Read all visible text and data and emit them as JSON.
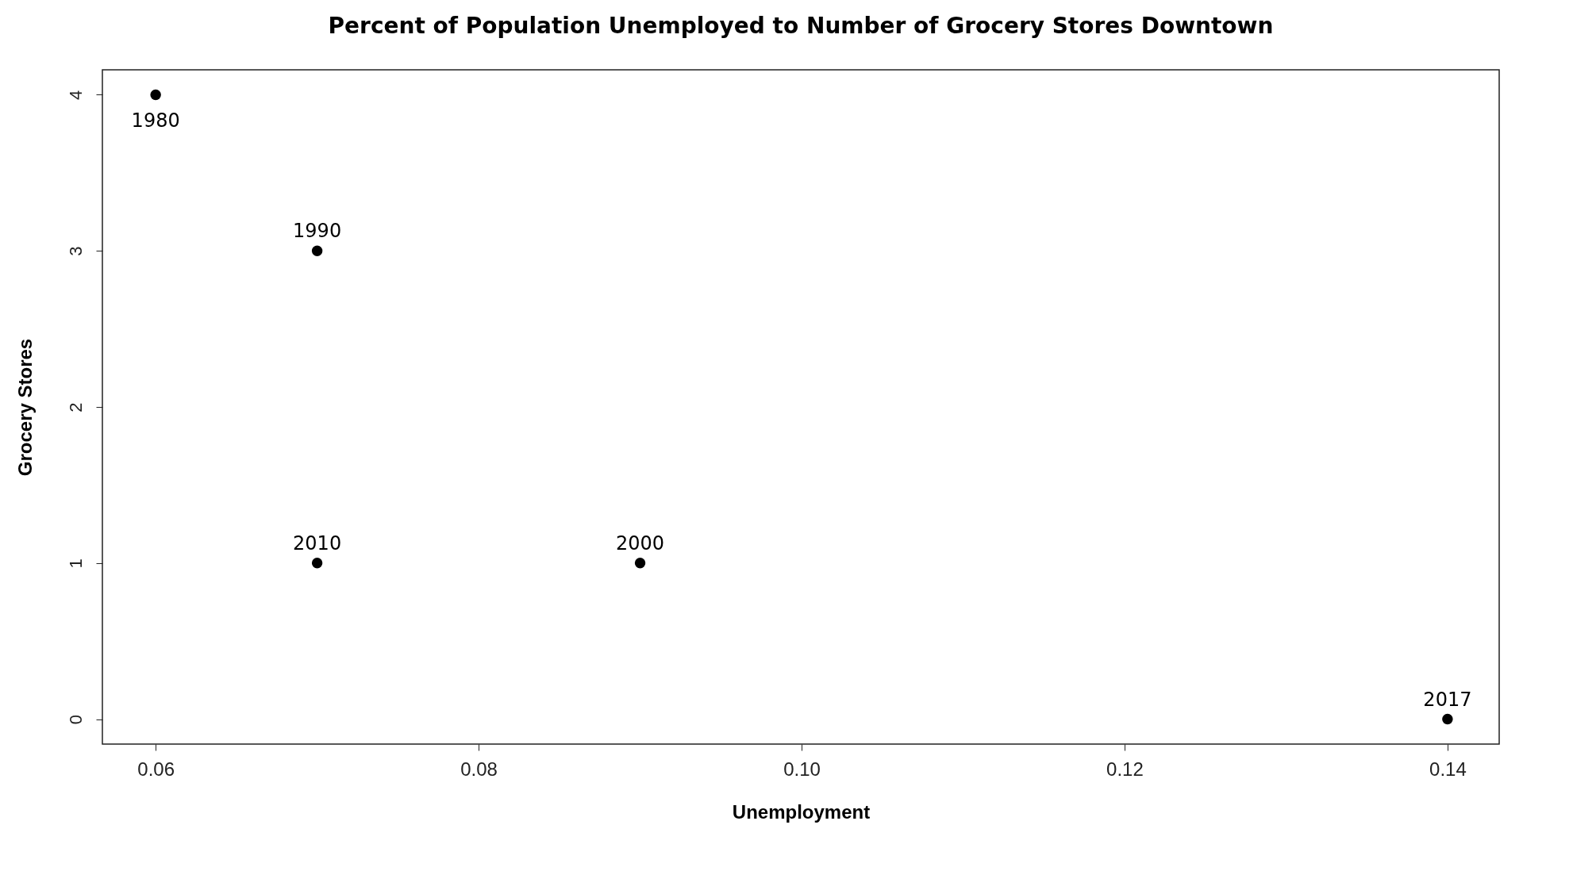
{
  "chart_data": {
    "type": "scatter",
    "title": "Percent of Population Unemployed to Number of Grocery Stores Downtown",
    "xlabel": "Unemployment",
    "ylabel": "Grocery Stores",
    "x": [
      0.06,
      0.07,
      0.07,
      0.09,
      0.14
    ],
    "series": [
      {
        "color": "#000000",
        "values": [
          4,
          3,
          1,
          1,
          0
        ]
      }
    ],
    "xlim": [
      0.0567,
      0.1432
    ],
    "xticks": [
      {
        "value": 0.06,
        "label": "0.06"
      },
      {
        "value": 0.08,
        "label": "0.08"
      },
      {
        "value": 0.1,
        "label": "0.10"
      },
      {
        "value": 0.12,
        "label": "0.12"
      },
      {
        "value": 0.14,
        "label": "0.14"
      }
    ],
    "ylim": [
      -0.16,
      4.16
    ],
    "yticks": [
      0,
      1,
      2,
      3,
      4
    ],
    "grid": false,
    "marker": "circle",
    "annotations": [
      {
        "text": "1980",
        "x": 0.06,
        "y": 4
      },
      {
        "text": "1990",
        "x": 0.07,
        "y": 3
      },
      {
        "text": "2010",
        "x": 0.07,
        "y": 1
      },
      {
        "text": "2000",
        "x": 0.09,
        "y": 1
      },
      {
        "text": "2017",
        "x": 0.14,
        "y": 0
      }
    ]
  }
}
